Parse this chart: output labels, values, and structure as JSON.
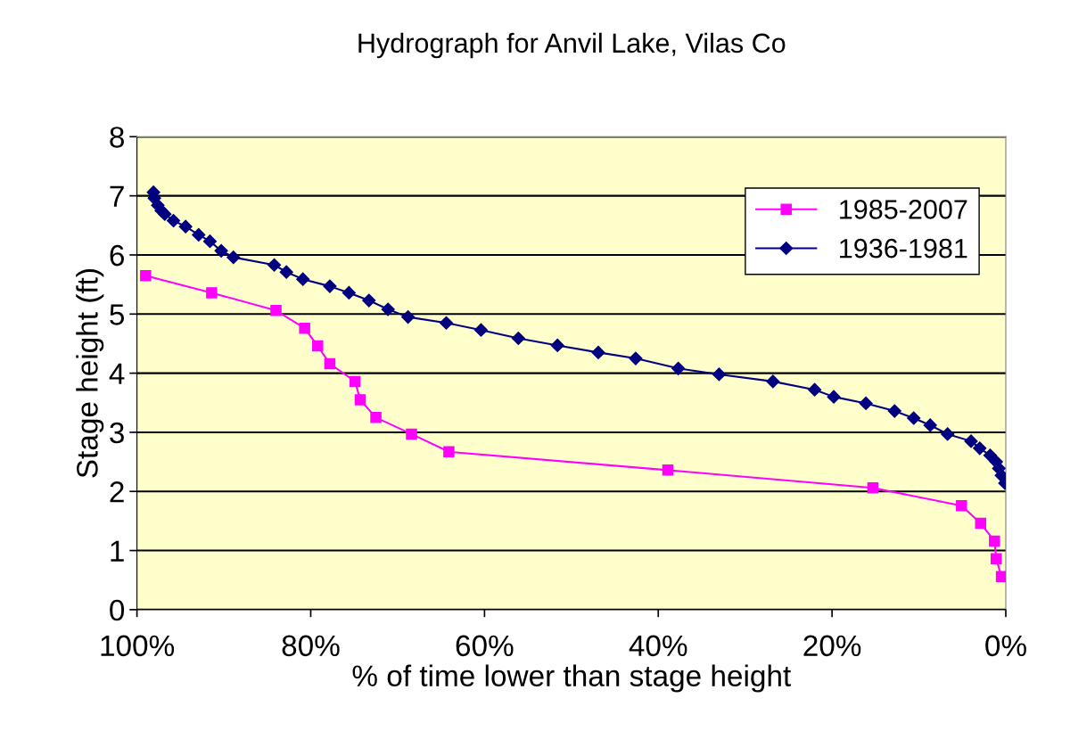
{
  "chart_data": {
    "type": "line",
    "title": "Hydrograph for Anvil Lake, Vilas Co",
    "xlabel": "% of time lower than stage height",
    "ylabel": "Stage height (ft)",
    "xlim": [
      100,
      0
    ],
    "xticks": [
      {
        "value": 100,
        "label": "100%"
      },
      {
        "value": 80,
        "label": "80%"
      },
      {
        "value": 60,
        "label": "60%"
      },
      {
        "value": 40,
        "label": "40%"
      },
      {
        "value": 20,
        "label": "20%"
      },
      {
        "value": 0,
        "label": "0%"
      }
    ],
    "ylim": [
      0,
      8
    ],
    "yticks": [
      0,
      1,
      2,
      3,
      4,
      5,
      6,
      7,
      8
    ],
    "grid": "y",
    "legend": "top right",
    "series": [
      {
        "name": "1985-2007",
        "color": "#ff00ff",
        "marker": "square",
        "x": [
          99.0,
          91.4,
          84.0,
          80.7,
          79.2,
          77.8,
          74.9,
          74.3,
          72.5,
          68.4,
          64.1,
          38.9,
          15.3,
          5.1,
          2.9,
          1.3,
          1.1,
          0.5
        ],
        "values": [
          5.65,
          5.36,
          5.06,
          4.76,
          4.46,
          4.16,
          3.86,
          3.55,
          3.25,
          2.97,
          2.67,
          2.36,
          2.06,
          1.76,
          1.46,
          1.16,
          0.86,
          0.56
        ]
      },
      {
        "name": "1936-1981",
        "color": "#000080",
        "marker": "diamond",
        "x": [
          98.1,
          98.0,
          97.6,
          97.2,
          96.8,
          95.8,
          94.4,
          92.9,
          91.6,
          90.3,
          88.9,
          84.2,
          82.8,
          80.9,
          77.8,
          75.6,
          73.3,
          71.1,
          68.8,
          64.4,
          60.4,
          56.1,
          51.6,
          46.9,
          42.6,
          37.7,
          33.0,
          26.8,
          22.0,
          19.8,
          16.1,
          12.8,
          10.6,
          8.7,
          6.7,
          4.0,
          3.0,
          1.8,
          1.1,
          0.8,
          0.5,
          0.1
        ],
        "values": [
          7.06,
          6.96,
          6.84,
          6.75,
          6.69,
          6.58,
          6.48,
          6.34,
          6.23,
          6.07,
          5.96,
          5.83,
          5.71,
          5.59,
          5.47,
          5.36,
          5.23,
          5.08,
          4.95,
          4.85,
          4.73,
          4.59,
          4.47,
          4.35,
          4.25,
          4.08,
          3.98,
          3.86,
          3.72,
          3.6,
          3.49,
          3.36,
          3.24,
          3.12,
          2.97,
          2.85,
          2.73,
          2.61,
          2.5,
          2.39,
          2.27,
          2.14
        ]
      }
    ]
  }
}
